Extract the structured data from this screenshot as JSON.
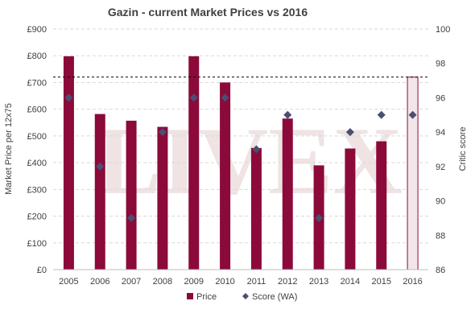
{
  "chart_data": {
    "type": "bar",
    "title": "Gazin - current Market Prices vs 2016",
    "categories": [
      "2005",
      "2006",
      "2007",
      "2008",
      "2009",
      "2010",
      "2011",
      "2012",
      "2013",
      "2014",
      "2015",
      "2016"
    ],
    "series": [
      {
        "name": "Price",
        "kind": "bar",
        "axis": "left",
        "values": [
          798,
          582,
          557,
          534,
          798,
          700,
          455,
          565,
          390,
          453,
          480,
          720
        ],
        "color": "#8b0a3a"
      },
      {
        "name": "Score (WA)",
        "kind": "marker",
        "axis": "right",
        "values": [
          96,
          92,
          89,
          94,
          96,
          96,
          93,
          95,
          89,
          94,
          95,
          95
        ],
        "color": "#4a4f73"
      }
    ],
    "highlighted_category": "2016",
    "highlight_color": "#f2e6eb",
    "reference_line": {
      "axis": "left",
      "value": 720,
      "style": "dashed"
    },
    "ylabel": "Market Price per 12x75",
    "y2label": "Critic score",
    "ylim": [
      0,
      900
    ],
    "y2lim": [
      86,
      100
    ],
    "yticks": [
      "£0",
      "£100",
      "£200",
      "£300",
      "£400",
      "£500",
      "£600",
      "£700",
      "£800",
      "£900"
    ],
    "y2ticks": [
      "86",
      "88",
      "90",
      "92",
      "94",
      "96",
      "98",
      "100"
    ],
    "grid": true,
    "legend": {
      "placement": "bottom",
      "entries": [
        "Price",
        "Score (WA)"
      ]
    },
    "watermark": "LIVEX"
  }
}
